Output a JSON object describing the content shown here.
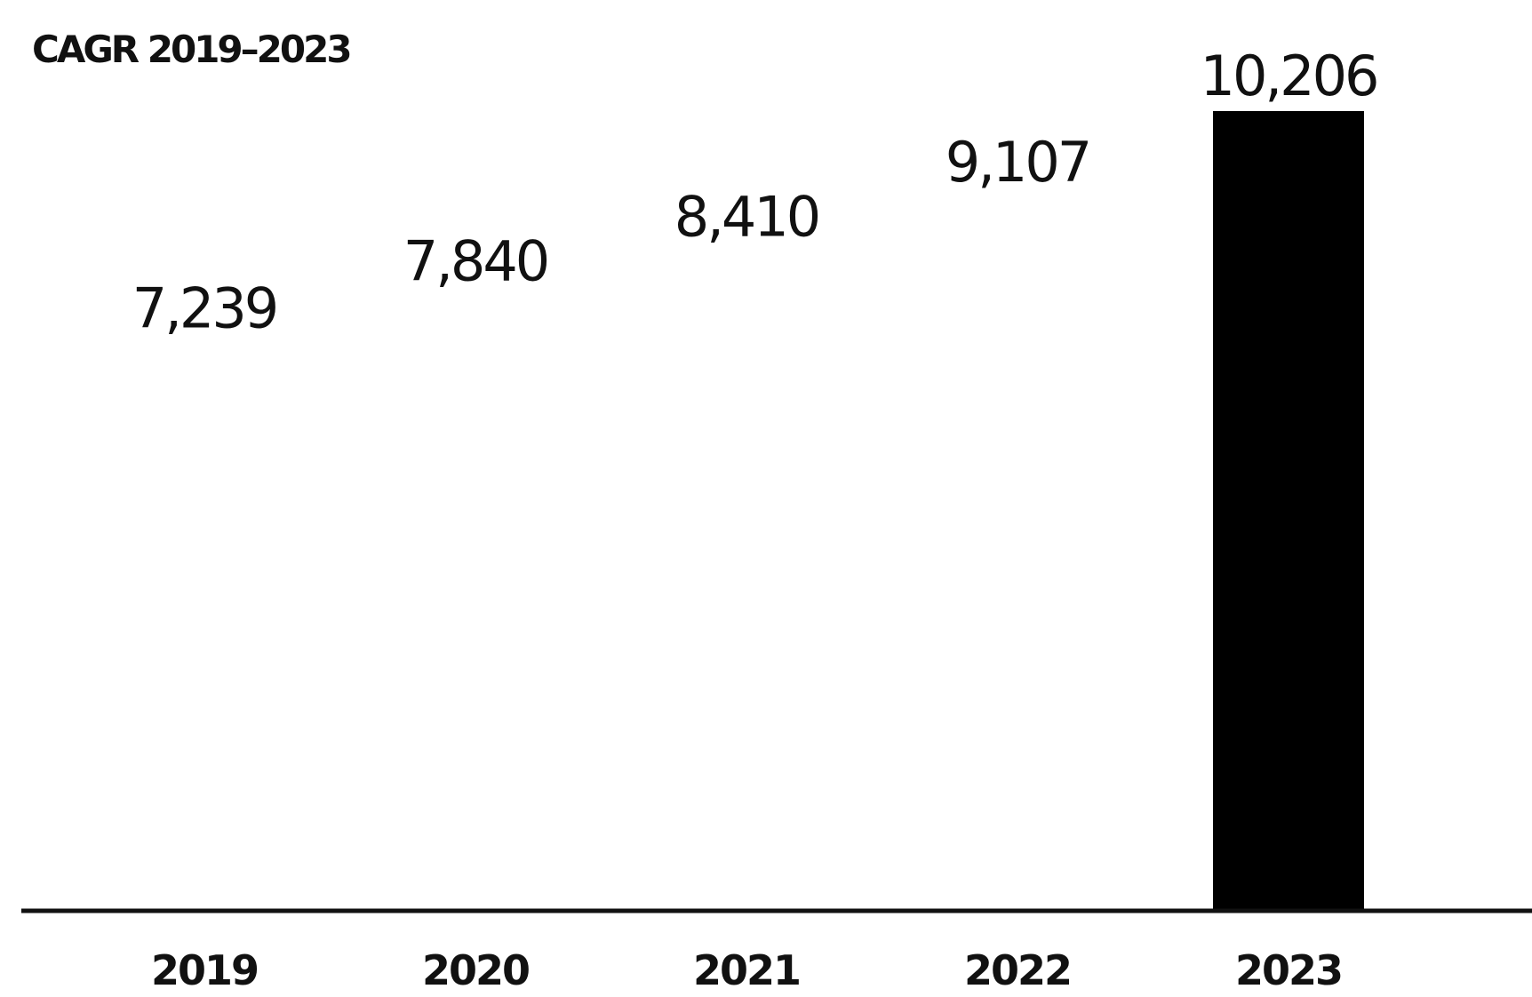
{
  "chart_data": {
    "type": "bar",
    "title": "CAGR 2019–2023",
    "categories": [
      "2019",
      "2020",
      "2021",
      "2022",
      "2023"
    ],
    "values": [
      7239,
      7840,
      8410,
      9107,
      10206
    ],
    "value_labels": [
      "7,239",
      "7,840",
      "8,410",
      "9,107",
      "10,206"
    ],
    "bar_visible": [
      false,
      false,
      false,
      false,
      true
    ],
    "bar_color": "#000000",
    "ylim": [
      0,
      10206
    ],
    "xlabel": "",
    "ylabel": "",
    "grid": false
  }
}
